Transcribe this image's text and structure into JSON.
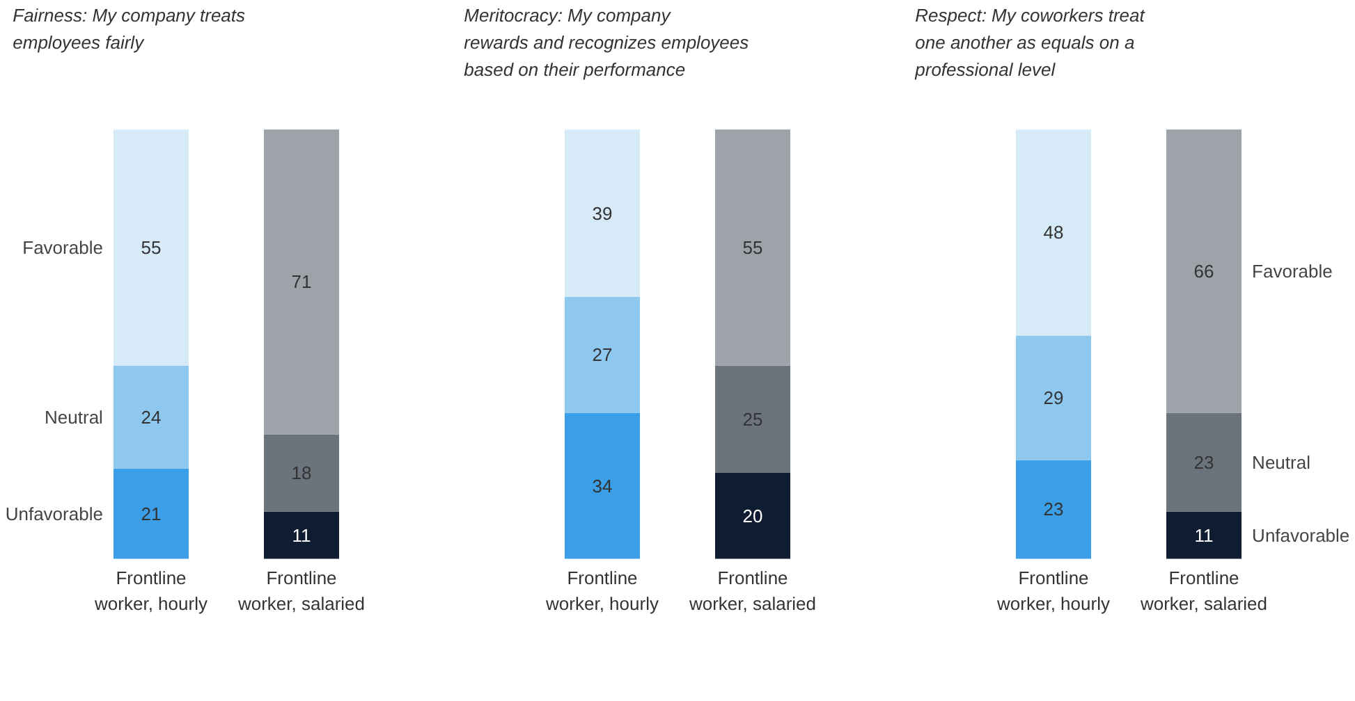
{
  "chart_data": [
    {
      "type": "bar",
      "stacked": true,
      "title": "Fairness: My company treats\nemployees fairly",
      "categories": [
        "Frontline\nworker, hourly",
        "Frontline\nworker, salaried"
      ],
      "data_labels": true,
      "legend": "left",
      "series": [
        {
          "name": "Unfavorable",
          "colors": [
            "#3a9fe6",
            "#0f1d33"
          ],
          "values": [
            21,
            11
          ]
        },
        {
          "name": "Neutral",
          "colors": [
            "#8ec8ef",
            "#6b747d"
          ],
          "values": [
            24,
            18
          ]
        },
        {
          "name": "Favorable",
          "colors": [
            "#d7eaf8",
            "#9ea2a9"
          ],
          "values": [
            55,
            71
          ]
        }
      ]
    },
    {
      "type": "bar",
      "stacked": true,
      "title": "Meritocracy: My company\nrewards and recognizes employees\nbased on their performance",
      "categories": [
        "Frontline\nworker, hourly",
        "Frontline\nworker, salaried"
      ],
      "data_labels": true,
      "series": [
        {
          "colors": [
            "#3a9fe6",
            "#0f1d33"
          ],
          "values": [
            34,
            20
          ]
        },
        {
          "colors": [
            "#8ec8ef",
            "#6b747d"
          ],
          "values": [
            27,
            25
          ]
        },
        {
          "colors": [
            "#d7eaf8",
            "#9ea2a9"
          ],
          "values": [
            39,
            55
          ]
        }
      ]
    },
    {
      "type": "bar",
      "stacked": true,
      "title": "Respect: My coworkers treat\none another as equals on a\nprofessional level",
      "categories": [
        "Frontline\nworker, hourly",
        "Frontline\nworker, salaried"
      ],
      "data_labels": true,
      "legend": "right",
      "series": [
        {
          "name": "Unfavorable",
          "colors": [
            "#3a9fe6",
            "#0f1d33"
          ],
          "values": [
            23,
            11
          ]
        },
        {
          "name": "Neutral",
          "colors": [
            "#8ec8ef",
            "#6b747d"
          ],
          "values": [
            29,
            23
          ]
        },
        {
          "name": "Favorable",
          "colors": [
            "#d7eaf8",
            "#9ea2a9"
          ],
          "values": [
            48,
            66
          ]
        }
      ]
    }
  ]
}
